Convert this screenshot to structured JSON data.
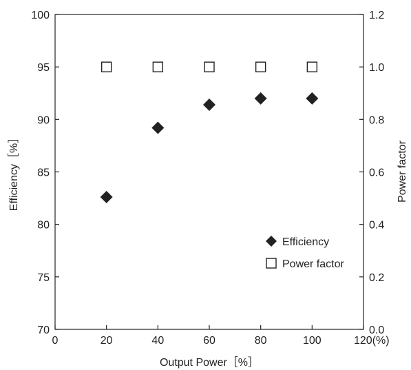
{
  "chart_data": {
    "type": "scatter",
    "xlabel": "Output Power［%］",
    "ylabel": "Efficiency［%］",
    "y2label": "Power factor",
    "xlim": [
      0,
      120
    ],
    "ylim": [
      70,
      100
    ],
    "y2lim": [
      0.0,
      1.2
    ],
    "x_ticks": [
      "0",
      "20",
      "40",
      "60",
      "80",
      "100",
      "120(%)"
    ],
    "y_ticks": [
      "70",
      "75",
      "80",
      "85",
      "90",
      "95",
      "100"
    ],
    "y2_ticks": [
      "0.0",
      "0.2",
      "0.4",
      "0.6",
      "0.8",
      "1.0",
      "1.2"
    ],
    "grid": false,
    "legend_position": "lower-right",
    "series": [
      {
        "name": "Efficiency",
        "axis": "left",
        "marker": "filled-diamond",
        "color": "#222222",
        "x": [
          20,
          40,
          60,
          80,
          100
        ],
        "y": [
          82.6,
          89.2,
          91.4,
          92.0,
          92.0
        ]
      },
      {
        "name": "Power factor",
        "axis": "right",
        "marker": "open-square",
        "color": "#222222",
        "x": [
          20,
          40,
          60,
          80,
          100
        ],
        "y": [
          1.0,
          1.0,
          1.0,
          1.0,
          1.0
        ]
      }
    ]
  }
}
